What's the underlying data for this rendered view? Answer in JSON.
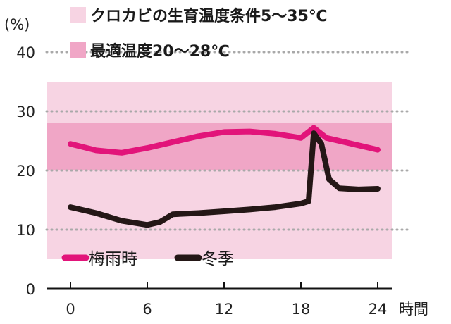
{
  "chart_data": {
    "type": "line",
    "y_unit_label": "(%)",
    "x_unit_label": "時間",
    "x_ticks": [
      0,
      6,
      12,
      18,
      24
    ],
    "y_ticks": [
      0,
      10,
      20,
      30,
      40
    ],
    "xlim": [
      -2,
      25
    ],
    "ylim": [
      0,
      40
    ],
    "grid": "horizontal dotted",
    "bands": [
      {
        "label": "クロカビの生育温度条件5〜35℃",
        "from": 5,
        "to": 35,
        "color": "#f7d4e3"
      },
      {
        "label": "最適温度20〜28℃",
        "from": 20,
        "to": 28,
        "color": "#f0a6c6"
      }
    ],
    "series": [
      {
        "name": "梅雨時",
        "color": "#e2147a",
        "points": [
          [
            0,
            24.5
          ],
          [
            2,
            23.4
          ],
          [
            4,
            23.0
          ],
          [
            6,
            23.8
          ],
          [
            8,
            24.8
          ],
          [
            10,
            25.8
          ],
          [
            12,
            26.5
          ],
          [
            14,
            26.6
          ],
          [
            16,
            26.2
          ],
          [
            18,
            25.5
          ],
          [
            19,
            27.2
          ],
          [
            20,
            25.5
          ],
          [
            22,
            24.5
          ],
          [
            24,
            23.5
          ]
        ]
      },
      {
        "name": "冬季",
        "color": "#241716",
        "points": [
          [
            0,
            13.8
          ],
          [
            2,
            12.8
          ],
          [
            4,
            11.5
          ],
          [
            6,
            10.8
          ],
          [
            7,
            11.3
          ],
          [
            8,
            12.6
          ],
          [
            10,
            12.8
          ],
          [
            12,
            13.1
          ],
          [
            14,
            13.4
          ],
          [
            16,
            13.8
          ],
          [
            18,
            14.4
          ],
          [
            18.6,
            14.8
          ],
          [
            19,
            26.3
          ],
          [
            19.6,
            24.5
          ],
          [
            20.2,
            18.5
          ],
          [
            21,
            17.0
          ],
          [
            22.5,
            16.8
          ],
          [
            24,
            16.9
          ]
        ]
      }
    ]
  }
}
